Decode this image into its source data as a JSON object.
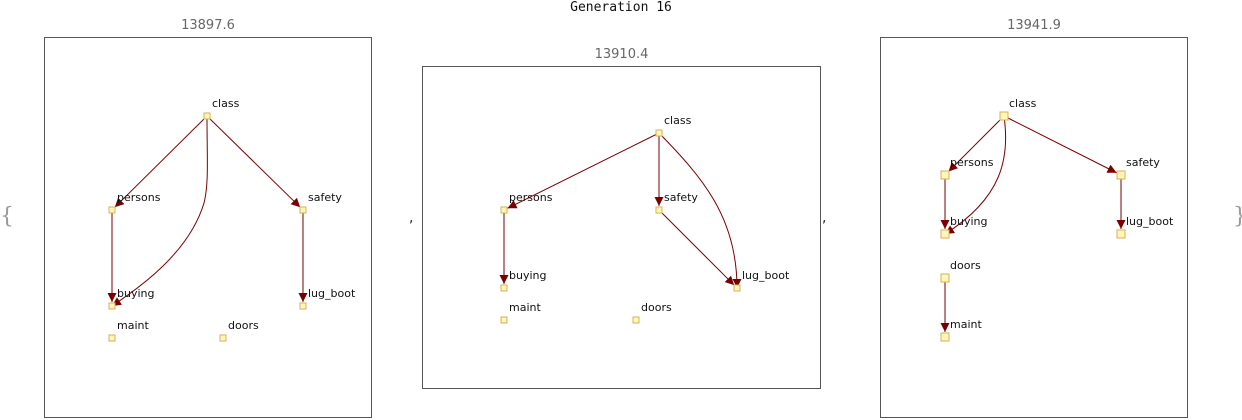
{
  "title": "Generation 16",
  "open_brace": "{",
  "close_brace": "}",
  "separator": ",",
  "colors": {
    "node_fill": "#fff6b8",
    "node_stroke": "#d4b25a",
    "edge": "#7a0000",
    "frame": "#555555"
  },
  "panels": [
    {
      "score": "13897.6",
      "nodes": [
        "class",
        "persons",
        "safety",
        "buying",
        "lug_boot",
        "maint",
        "doors"
      ],
      "edges": [
        [
          "class",
          "persons"
        ],
        [
          "class",
          "buying"
        ],
        [
          "class",
          "safety"
        ],
        [
          "persons",
          "buying"
        ],
        [
          "safety",
          "lug_boot"
        ]
      ]
    },
    {
      "score": "13910.4",
      "nodes": [
        "class",
        "persons",
        "safety",
        "buying",
        "lug_boot",
        "maint",
        "doors"
      ],
      "edges": [
        [
          "class",
          "persons"
        ],
        [
          "class",
          "safety"
        ],
        [
          "class",
          "lug_boot"
        ],
        [
          "persons",
          "buying"
        ],
        [
          "safety",
          "lug_boot"
        ]
      ]
    },
    {
      "score": "13941.9",
      "nodes": [
        "class",
        "persons",
        "safety",
        "buying",
        "lug_boot",
        "doors",
        "maint"
      ],
      "edges": [
        [
          "class",
          "persons"
        ],
        [
          "class",
          "buying"
        ],
        [
          "class",
          "safety"
        ],
        [
          "persons",
          "buying"
        ],
        [
          "safety",
          "lug_boot"
        ],
        [
          "doors",
          "maint"
        ]
      ]
    }
  ]
}
